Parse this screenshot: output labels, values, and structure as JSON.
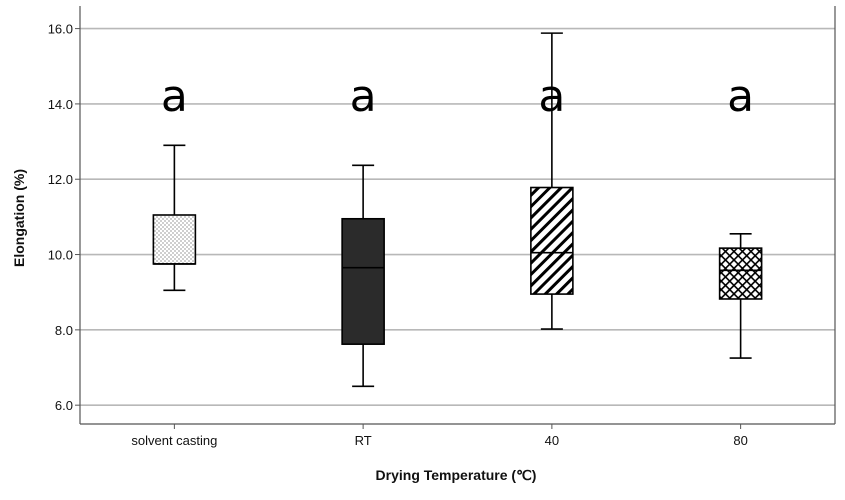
{
  "chart_data": {
    "type": "box",
    "title": "",
    "xlabel": "Drying Temperature (℃)",
    "ylabel": "Elongation (%)",
    "ylim": [
      5.5,
      16.6
    ],
    "yticks": [
      6.0,
      8.0,
      10.0,
      12.0,
      14.0,
      16.0
    ],
    "ytick_labels": [
      "6.0",
      "8.0",
      "10.0",
      "12.0",
      "14.0",
      "16.0"
    ],
    "grid": "horizontal",
    "categories": [
      "solvent casting",
      "RT",
      "40",
      "80"
    ],
    "series": [
      {
        "name": "solvent casting",
        "min": 9.05,
        "q1": 9.75,
        "median": 9.75,
        "q3": 11.05,
        "max": 12.9,
        "fill": "dotted",
        "letter": "a"
      },
      {
        "name": "RT",
        "min": 6.5,
        "q1": 7.62,
        "median": 9.65,
        "q3": 10.95,
        "max": 12.37,
        "fill": "solid",
        "letter": "a"
      },
      {
        "name": "40",
        "min": 8.02,
        "q1": 8.95,
        "median": 10.05,
        "q3": 11.78,
        "max": 15.88,
        "fill": "diagonal",
        "letter": "a"
      },
      {
        "name": "80",
        "min": 7.25,
        "q1": 8.82,
        "median": 9.58,
        "q3": 10.17,
        "max": 10.55,
        "fill": "crosshatch",
        "letter": "a"
      }
    ]
  },
  "colors": {
    "grid": "#b8b8b8",
    "axis": "#555555",
    "box_dark": "#2b2b2b",
    "box_light": "#ffffff",
    "stroke": "#000000"
  }
}
